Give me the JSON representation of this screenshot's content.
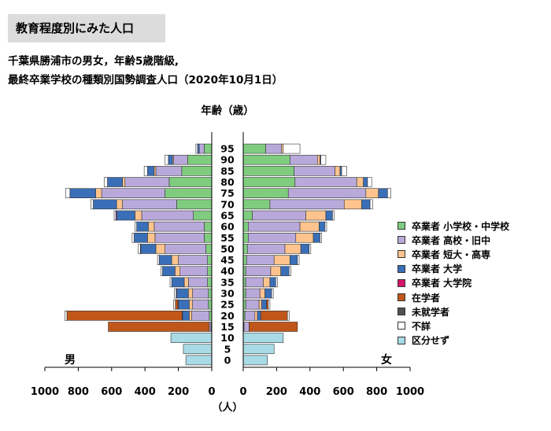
{
  "header": {
    "badge": "教育程度別にみた人口",
    "subtitle_line1": "千葉県勝浦市の男女，年齢5歳階級,",
    "subtitle_line2": "最終卒業学校の種類別国勢調査人口（2020年10月1日）"
  },
  "chart_data": {
    "type": "bar",
    "orientation": "horizontal-pyramid",
    "y_axis_title": "年齢（歳）",
    "x_unit": "（人）",
    "left_label": "男",
    "right_label": "女",
    "xlim": [
      0,
      1000
    ],
    "x_ticks_left": [
      "1000",
      "800",
      "600",
      "400",
      "200",
      "0"
    ],
    "x_ticks_right": [
      "0",
      "200",
      "400",
      "600",
      "800",
      "1000"
    ],
    "age_ticks": [
      "0",
      "5",
      "10",
      "15",
      "20",
      "25",
      "30",
      "35",
      "40",
      "45",
      "50",
      "55",
      "60",
      "65",
      "70",
      "75",
      "80",
      "85",
      "90",
      "95"
    ],
    "categories": [
      "0-4",
      "5-9",
      "10-14",
      "15-19",
      "20-24",
      "25-29",
      "30-34",
      "35-39",
      "40-44",
      "45-49",
      "50-54",
      "55-59",
      "60-64",
      "65-69",
      "70-74",
      "75-79",
      "80-84",
      "85-89",
      "90-94",
      "95+"
    ],
    "categories_note": "",
    "series_keys": [
      "elem",
      "high",
      "junior",
      "univ",
      "grad",
      "student",
      "never",
      "unknown",
      "nocat"
    ],
    "colors": {
      "elem": "#7fcc7f",
      "high": "#b9a9da",
      "junior": "#ffc48e",
      "univ": "#3a6fb8",
      "grad": "#d6136a",
      "student": "#c0561a",
      "never": "#505050",
      "unknown": "#ffffff",
      "nocat": "#a8dbe6"
    },
    "legend": [
      {
        "key": "elem",
        "label": "卒業者 小学校・中学校"
      },
      {
        "key": "high",
        "label": "卒業者 高校・旧中"
      },
      {
        "key": "junior",
        "label": "卒業者 短大・高専"
      },
      {
        "key": "univ",
        "label": "卒業者 大学"
      },
      {
        "key": "grad",
        "label": "卒業者 大学院"
      },
      {
        "key": "student",
        "label": "在学者"
      },
      {
        "key": "never",
        "label": "未就学者"
      },
      {
        "key": "unknown",
        "label": "不詳"
      },
      {
        "key": "nocat",
        "label": "区分せず"
      }
    ],
    "male": [
      {
        "elem": 0,
        "high": 0,
        "junior": 0,
        "univ": 0,
        "grad": 0,
        "student": 0,
        "never": 0,
        "unknown": 0,
        "nocat": 155
      },
      {
        "elem": 0,
        "high": 0,
        "junior": 0,
        "univ": 0,
        "grad": 0,
        "student": 0,
        "never": 0,
        "unknown": 0,
        "nocat": 170
      },
      {
        "elem": 0,
        "high": 0,
        "junior": 0,
        "univ": 0,
        "grad": 0,
        "student": 0,
        "never": 0,
        "unknown": 0,
        "nocat": 245
      },
      {
        "elem": 5,
        "high": 10,
        "junior": 0,
        "univ": 0,
        "grad": 0,
        "student": 605,
        "never": 0,
        "unknown": 0,
        "nocat": 0
      },
      {
        "elem": 15,
        "high": 105,
        "junior": 15,
        "univ": 40,
        "grad": 3,
        "student": 690,
        "never": 0,
        "unknown": 12,
        "nocat": 0
      },
      {
        "elem": 20,
        "high": 95,
        "junior": 20,
        "univ": 65,
        "grad": 3,
        "student": 15,
        "never": 0,
        "unknown": 10,
        "nocat": 0
      },
      {
        "elem": 20,
        "high": 95,
        "junior": 25,
        "univ": 70,
        "grad": 3,
        "student": 0,
        "never": 0,
        "unknown": 10,
        "nocat": 0
      },
      {
        "elem": 25,
        "high": 115,
        "junior": 25,
        "univ": 75,
        "grad": 0,
        "student": 0,
        "never": 0,
        "unknown": 10,
        "nocat": 0
      },
      {
        "elem": 25,
        "high": 165,
        "junior": 30,
        "univ": 75,
        "grad": 0,
        "student": 0,
        "never": 0,
        "unknown": 10,
        "nocat": 0
      },
      {
        "elem": 25,
        "high": 175,
        "junior": 40,
        "univ": 75,
        "grad": 0,
        "student": 0,
        "never": 0,
        "unknown": 10,
        "nocat": 0
      },
      {
        "elem": 35,
        "high": 245,
        "junior": 55,
        "univ": 90,
        "grad": 3,
        "student": 0,
        "never": 0,
        "unknown": 12,
        "nocat": 0
      },
      {
        "elem": 45,
        "high": 295,
        "junior": 45,
        "univ": 80,
        "grad": 0,
        "student": 0,
        "never": 0,
        "unknown": 12,
        "nocat": 0
      },
      {
        "elem": 45,
        "high": 300,
        "junior": 35,
        "univ": 70,
        "grad": 0,
        "student": 0,
        "never": 0,
        "unknown": 10,
        "nocat": 0
      },
      {
        "elem": 110,
        "high": 310,
        "junior": 40,
        "univ": 110,
        "grad": 5,
        "student": 0,
        "never": 0,
        "unknown": 10,
        "nocat": 0
      },
      {
        "elem": 210,
        "high": 325,
        "junior": 35,
        "univ": 140,
        "grad": 0,
        "student": 0,
        "never": 0,
        "unknown": 15,
        "nocat": 0
      },
      {
        "elem": 280,
        "high": 380,
        "junior": 35,
        "univ": 155,
        "grad": 0,
        "student": 0,
        "never": 0,
        "unknown": 25,
        "nocat": 0
      },
      {
        "elem": 255,
        "high": 265,
        "junior": 15,
        "univ": 90,
        "grad": 0,
        "student": 0,
        "never": 0,
        "unknown": 20,
        "nocat": 0
      },
      {
        "elem": 180,
        "high": 155,
        "junior": 10,
        "univ": 40,
        "grad": 0,
        "student": 0,
        "never": 0,
        "unknown": 20,
        "nocat": 0
      },
      {
        "elem": 145,
        "high": 85,
        "junior": 5,
        "univ": 25,
        "grad": 0,
        "student": 0,
        "never": 0,
        "unknown": 20,
        "nocat": 0
      },
      {
        "elem": 45,
        "high": 30,
        "junior": 0,
        "univ": 10,
        "grad": 0,
        "student": 0,
        "never": 0,
        "unknown": 10,
        "nocat": 0
      }
    ],
    "female": [
      {
        "elem": 0,
        "high": 0,
        "junior": 0,
        "univ": 0,
        "grad": 0,
        "student": 0,
        "never": 0,
        "unknown": 0,
        "nocat": 145
      },
      {
        "elem": 0,
        "high": 0,
        "junior": 0,
        "univ": 0,
        "grad": 0,
        "student": 0,
        "never": 0,
        "unknown": 0,
        "nocat": 185
      },
      {
        "elem": 0,
        "high": 0,
        "junior": 0,
        "univ": 0,
        "grad": 0,
        "student": 0,
        "never": 0,
        "unknown": 0,
        "nocat": 240
      },
      {
        "elem": 5,
        "high": 30,
        "junior": 0,
        "univ": 0,
        "grad": 0,
        "student": 290,
        "never": 0,
        "unknown": 0,
        "nocat": 0
      },
      {
        "elem": 10,
        "high": 60,
        "junior": 15,
        "univ": 20,
        "grad": 0,
        "student": 160,
        "never": 0,
        "unknown": 10,
        "nocat": 0
      },
      {
        "elem": 15,
        "high": 80,
        "junior": 15,
        "univ": 30,
        "grad": 0,
        "student": 10,
        "never": 0,
        "unknown": 10,
        "nocat": 0
      },
      {
        "elem": 15,
        "high": 85,
        "junior": 30,
        "univ": 40,
        "grad": 0,
        "student": 0,
        "never": 0,
        "unknown": 10,
        "nocat": 0
      },
      {
        "elem": 15,
        "high": 105,
        "junior": 40,
        "univ": 35,
        "grad": 0,
        "student": 0,
        "never": 0,
        "unknown": 10,
        "nocat": 0
      },
      {
        "elem": 15,
        "high": 150,
        "junior": 60,
        "univ": 50,
        "grad": 0,
        "student": 0,
        "never": 0,
        "unknown": 10,
        "nocat": 0
      },
      {
        "elem": 20,
        "high": 165,
        "junior": 95,
        "univ": 45,
        "grad": 0,
        "student": 0,
        "never": 0,
        "unknown": 10,
        "nocat": 0
      },
      {
        "elem": 25,
        "high": 225,
        "junior": 95,
        "univ": 50,
        "grad": 0,
        "student": 0,
        "never": 0,
        "unknown": 10,
        "nocat": 0
      },
      {
        "elem": 30,
        "high": 285,
        "junior": 105,
        "univ": 40,
        "grad": 0,
        "student": 0,
        "never": 0,
        "unknown": 10,
        "nocat": 0
      },
      {
        "elem": 30,
        "high": 310,
        "junior": 115,
        "univ": 35,
        "grad": 0,
        "student": 0,
        "never": 0,
        "unknown": 10,
        "nocat": 0
      },
      {
        "elem": 55,
        "high": 320,
        "junior": 120,
        "univ": 40,
        "grad": 0,
        "student": 0,
        "never": 0,
        "unknown": 10,
        "nocat": 0
      },
      {
        "elem": 160,
        "high": 445,
        "junior": 105,
        "univ": 50,
        "grad": 0,
        "student": 0,
        "never": 0,
        "unknown": 15,
        "nocat": 0
      },
      {
        "elem": 270,
        "high": 465,
        "junior": 75,
        "univ": 55,
        "grad": 0,
        "student": 0,
        "never": 0,
        "unknown": 20,
        "nocat": 0
      },
      {
        "elem": 310,
        "high": 370,
        "junior": 40,
        "univ": 25,
        "grad": 0,
        "student": 0,
        "never": 0,
        "unknown": 25,
        "nocat": 0
      },
      {
        "elem": 305,
        "high": 245,
        "junior": 30,
        "univ": 10,
        "grad": 0,
        "student": 0,
        "never": 0,
        "unknown": 30,
        "nocat": 0
      },
      {
        "elem": 280,
        "high": 165,
        "junior": 15,
        "univ": 5,
        "grad": 0,
        "student": 0,
        "never": 0,
        "unknown": 30,
        "nocat": 0
      },
      {
        "elem": 135,
        "high": 95,
        "junior": 10,
        "univ": 0,
        "grad": 0,
        "student": 0,
        "never": 0,
        "unknown": 100,
        "nocat": 0
      }
    ]
  }
}
